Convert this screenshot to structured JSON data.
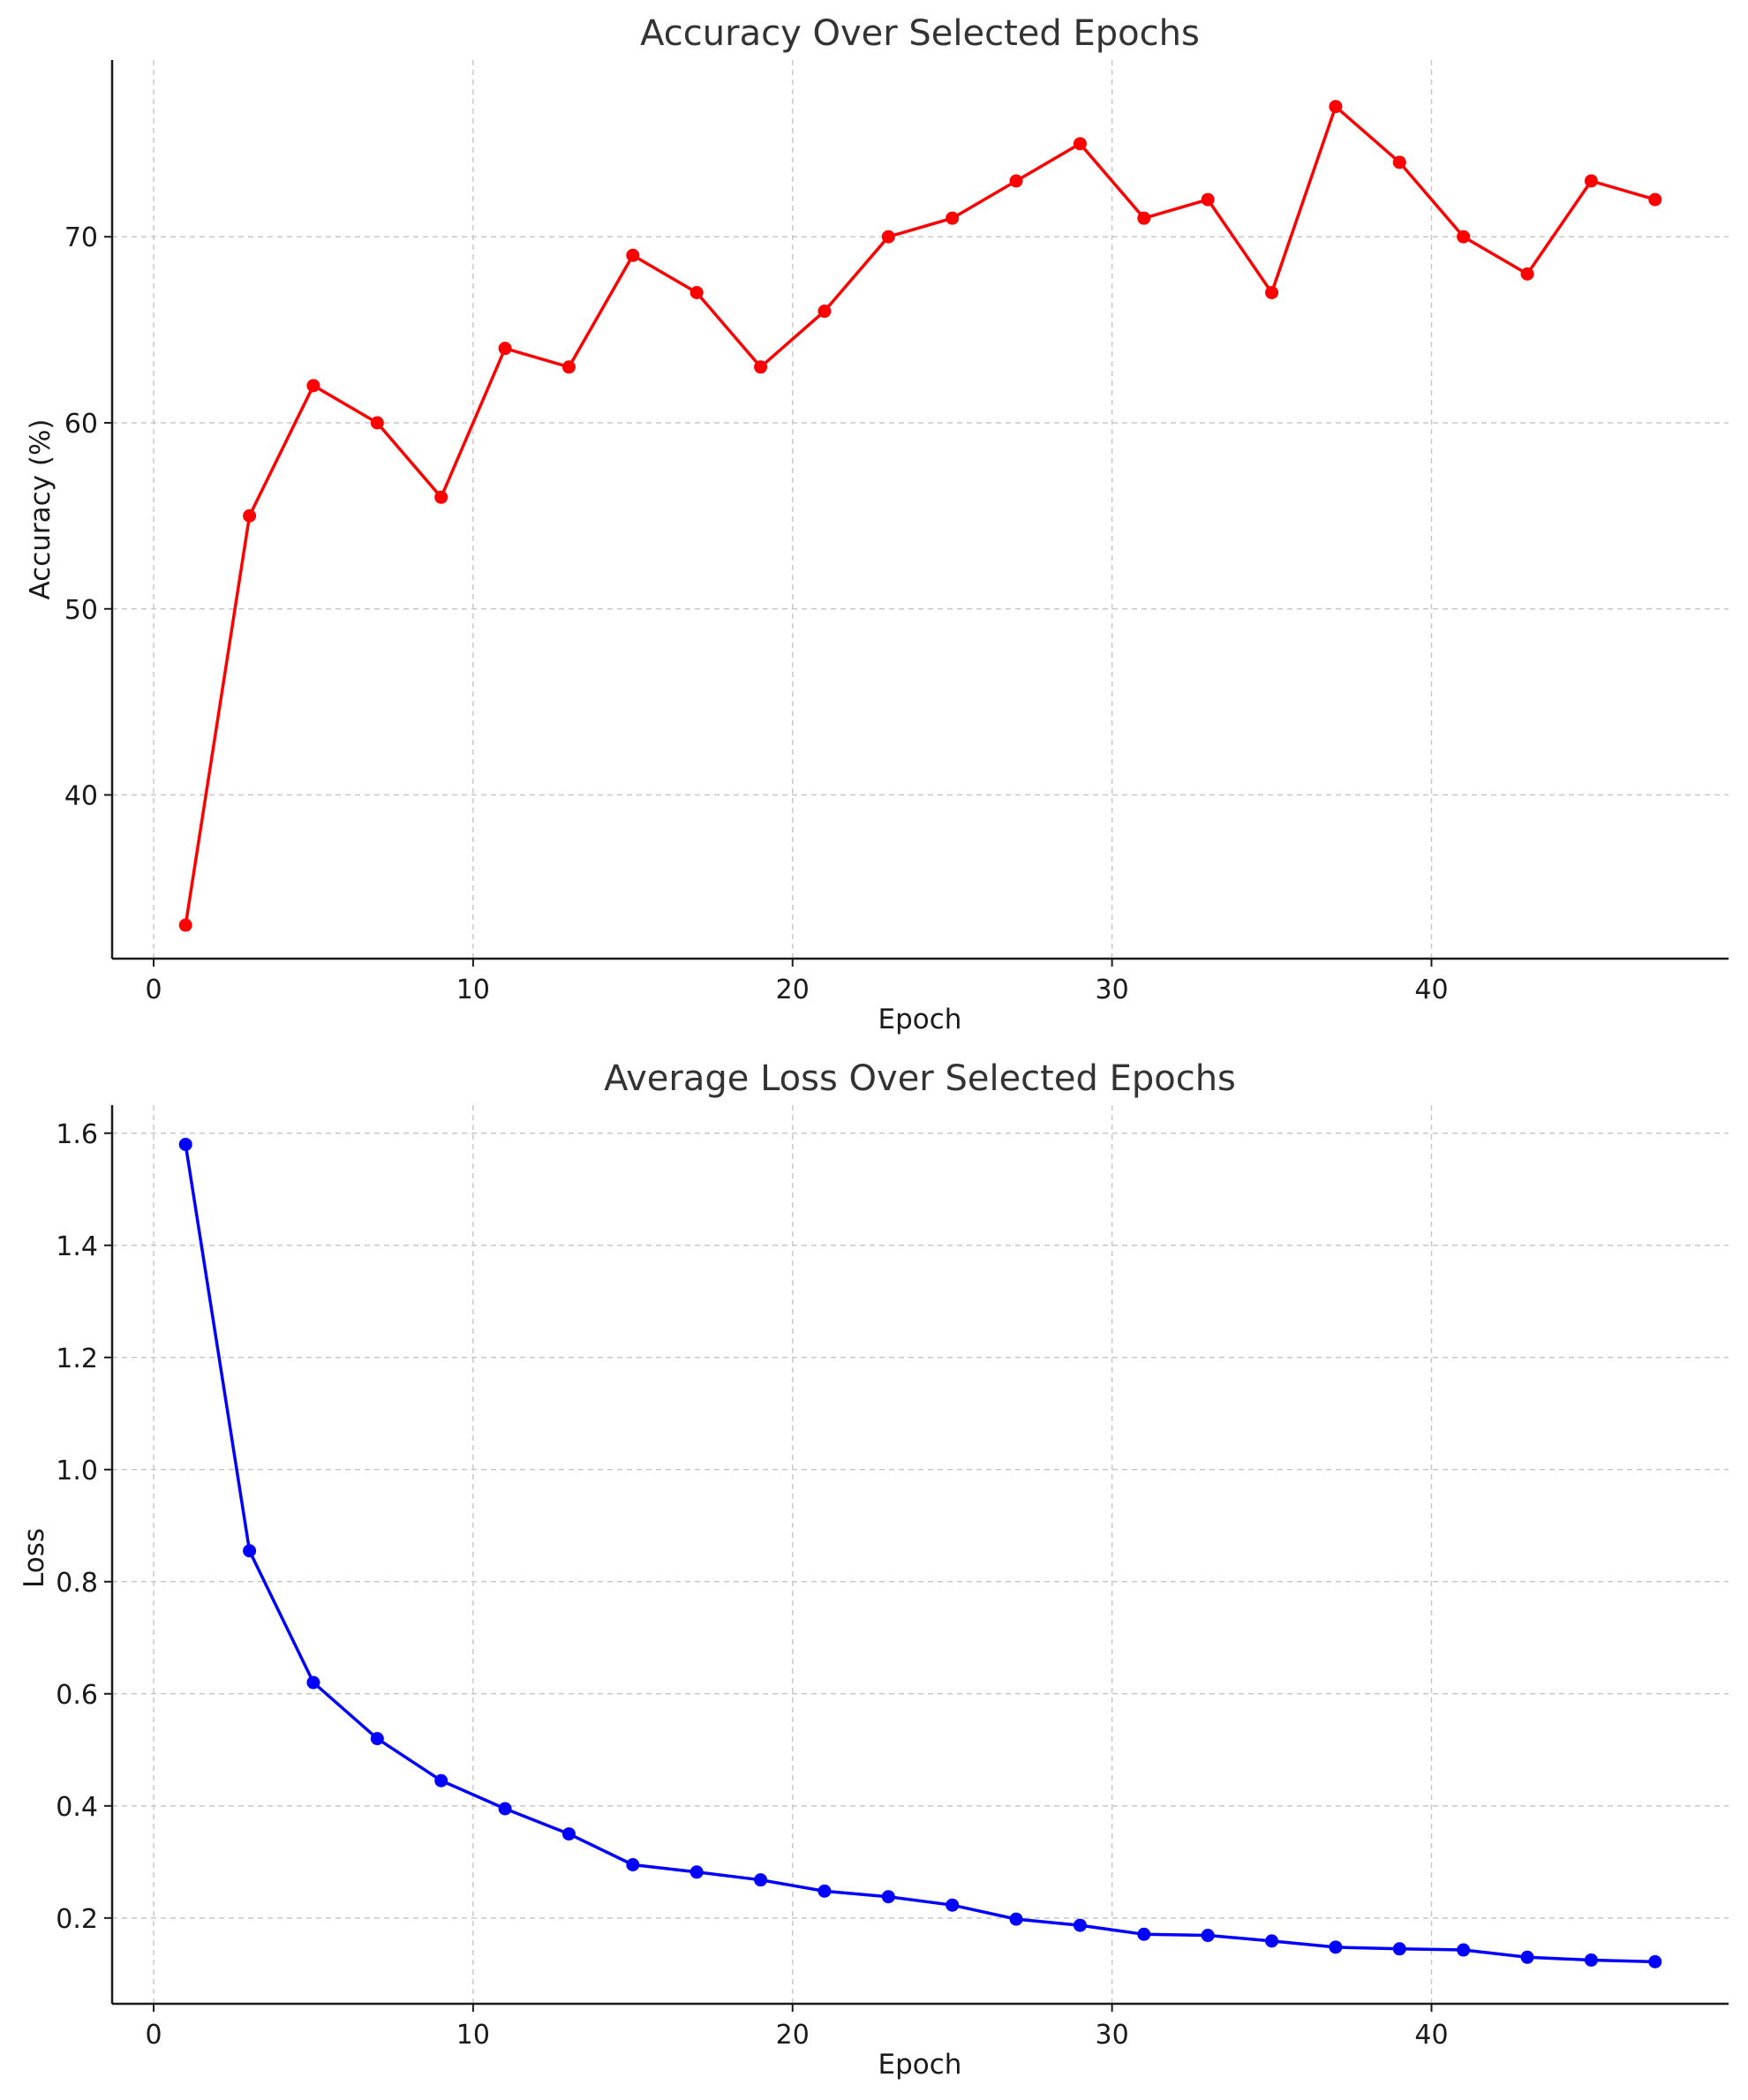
{
  "chart_data": [
    {
      "type": "line",
      "title": "Accuracy Over Selected Epochs",
      "xlabel": "Epoch",
      "ylabel": "Accuracy (%)",
      "xlim": [
        -1.3,
        49.3
      ],
      "ylim": [
        31.2,
        79.5
      ],
      "xticks": [
        0,
        10,
        20,
        30,
        40
      ],
      "yticks": [
        40,
        50,
        60,
        70
      ],
      "grid": true,
      "series": [
        {
          "color": "#ff0000",
          "marker": "circle",
          "x": [
            1,
            3,
            5,
            7,
            9,
            11,
            13,
            15,
            17,
            19,
            21,
            23,
            25,
            27,
            29,
            31,
            33,
            35,
            37,
            39,
            41,
            43,
            45,
            47
          ],
          "y": [
            33,
            55,
            62,
            60,
            56,
            64,
            63,
            69,
            67,
            63,
            66,
            70,
            71,
            73,
            75,
            71,
            72,
            67,
            77,
            74,
            70,
            68,
            73,
            72
          ]
        }
      ]
    },
    {
      "type": "line",
      "title": "Average Loss Over Selected Epochs",
      "xlabel": "Epoch",
      "ylabel": "Loss",
      "xlim": [
        -1.3,
        49.3
      ],
      "ylim": [
        0.047,
        1.65
      ],
      "xticks": [
        0,
        10,
        20,
        30,
        40
      ],
      "yticks": [
        0.2,
        0.4,
        0.6,
        0.8,
        1.0,
        1.2,
        1.4,
        1.6
      ],
      "grid": true,
      "series": [
        {
          "color": "#0000ff",
          "marker": "circle",
          "x": [
            1,
            3,
            5,
            7,
            9,
            11,
            13,
            15,
            17,
            19,
            21,
            23,
            25,
            27,
            29,
            31,
            33,
            35,
            37,
            39,
            41,
            43,
            45,
            47
          ],
          "y": [
            1.58,
            0.855,
            0.62,
            0.52,
            0.445,
            0.395,
            0.35,
            0.295,
            0.282,
            0.268,
            0.248,
            0.238,
            0.223,
            0.198,
            0.187,
            0.171,
            0.169,
            0.159,
            0.148,
            0.145,
            0.143,
            0.13,
            0.125,
            0.122
          ]
        }
      ]
    }
  ]
}
